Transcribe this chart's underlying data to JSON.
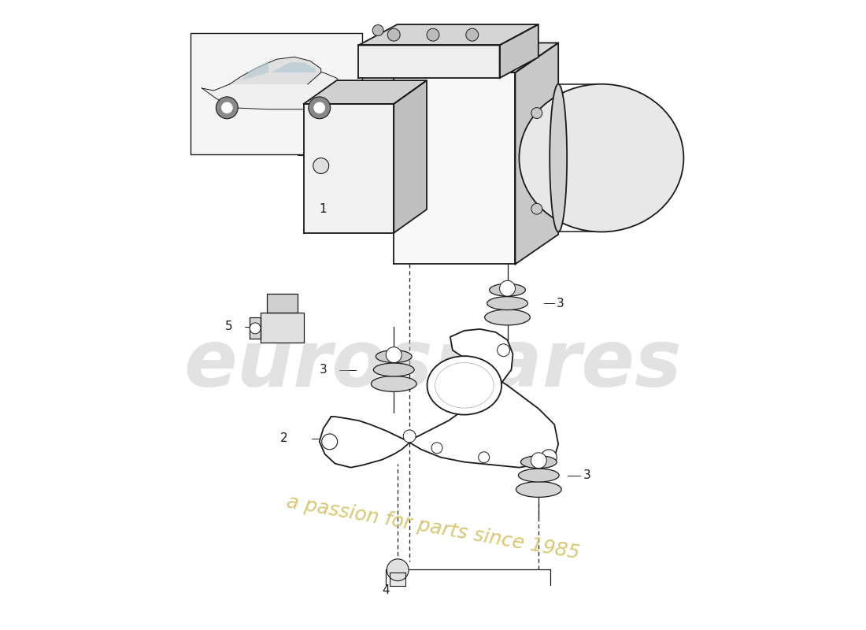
{
  "background_color": "#ffffff",
  "line_color": "#1a1a1a",
  "watermark_text1": "eurospares",
  "watermark_text2": "a passion for parts since 1985",
  "watermark_color1": "#c0c0c0",
  "watermark_color2": "#d4c060",
  "fig_width": 11.0,
  "fig_height": 8.0,
  "dpi": 100
}
